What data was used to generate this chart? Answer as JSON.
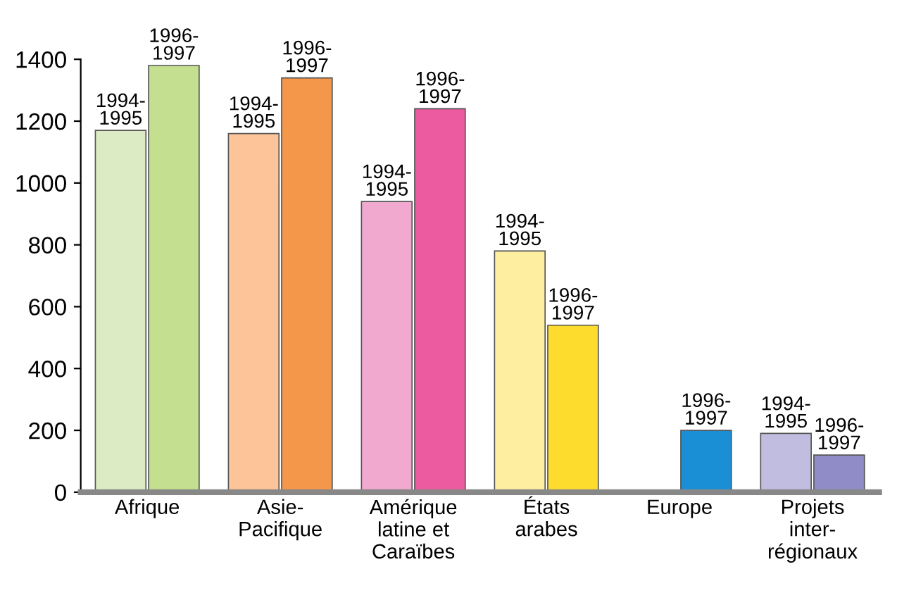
{
  "chart_data": {
    "type": "bar",
    "categories": [
      "Afrique",
      "Asie-\nPacifique",
      "Amérique\nlatine et\nCaraïbes",
      "États\narabes",
      "Europe",
      "Projets\ninter-\nrégionaux"
    ],
    "series": [
      {
        "name": "1994-\n1995",
        "colors": [
          "#dcebc4",
          "#fdc49a",
          "#f2a9cf",
          "#fdeea0",
          "#1a8fd6",
          "#c0bde0"
        ],
        "values": [
          1170,
          1160,
          940,
          780,
          null,
          190
        ]
      },
      {
        "name": "1996-\n1997",
        "colors": [
          "#c3df8f",
          "#f5974a",
          "#ec5aa0",
          "#fedc2e",
          "#1a8fd6",
          "#8f8cc7"
        ],
        "values": [
          1380,
          1340,
          1240,
          540,
          200,
          120
        ]
      }
    ],
    "ylim": [
      0,
      1400
    ],
    "yticks": [
      0,
      200,
      400,
      600,
      800,
      1000,
      1200,
      1400
    ],
    "grid": false,
    "legend": false
  }
}
